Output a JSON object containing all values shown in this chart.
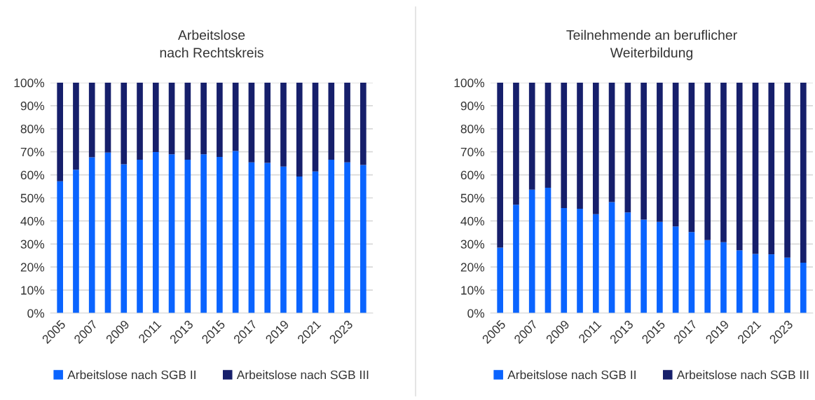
{
  "chart_data": [
    {
      "type": "bar",
      "title": "Arbeitslose\nnach Rechtskreis",
      "stacked": true,
      "categories": [
        "2005",
        null,
        "2007",
        null,
        "2009",
        null,
        "2011",
        null,
        "2013",
        null,
        "2015",
        null,
        "2017",
        null,
        "2019",
        null,
        "2021",
        null,
        "2023",
        null
      ],
      "series": [
        {
          "name": "Arbeitslose nach SGB II",
          "color": "#0a64ff",
          "values": [
            57.2,
            62.2,
            67.6,
            69.7,
            64.6,
            66.6,
            69.9,
            68.9,
            66.6,
            68.9,
            67.8,
            70.4,
            65.4,
            65.2,
            63.6,
            59.3,
            61.5,
            66.6,
            65.4,
            64.3
          ]
        },
        {
          "name": "Arbeitslose nach SGB III",
          "color": "#161f6b",
          "values": [
            42.8,
            37.8,
            32.4,
            30.3,
            35.4,
            33.4,
            30.1,
            31.1,
            33.4,
            31.1,
            32.2,
            29.6,
            34.6,
            34.8,
            36.4,
            40.7,
            38.5,
            33.4,
            34.6,
            35.7
          ]
        }
      ],
      "ylim": [
        0,
        100
      ],
      "yticks": [
        {
          "value": 0,
          "label": "0%"
        },
        {
          "value": 10,
          "label": "10%"
        },
        {
          "value": 20,
          "label": "20%"
        },
        {
          "value": 30,
          "label": "30%"
        },
        {
          "value": 40,
          "label": "40%"
        },
        {
          "value": 50,
          "label": "50%"
        },
        {
          "value": 60,
          "label": "60%"
        },
        {
          "value": 70,
          "label": "70%"
        },
        {
          "value": 80,
          "label": "80%"
        },
        {
          "value": 90,
          "label": "90%"
        },
        {
          "value": 100,
          "label": "100%"
        }
      ],
      "grid": "y",
      "legend": "bottom"
    },
    {
      "type": "bar",
      "title": "Teilnehmende an beruflicher\nWeiterbildung",
      "stacked": true,
      "categories": [
        "2005",
        null,
        "2007",
        null,
        "2009",
        null,
        "2011",
        null,
        "2013",
        null,
        "2015",
        null,
        "2017",
        null,
        "2019",
        null,
        "2021",
        null,
        "2023",
        null
      ],
      "series": [
        {
          "name": "Arbeitslose nach SGB II",
          "color": "#0a64ff",
          "values": [
            28.4,
            47.0,
            53.6,
            54.4,
            45.6,
            45.3,
            42.9,
            48.2,
            43.7,
            40.6,
            39.6,
            37.6,
            35.2,
            31.7,
            30.8,
            27.3,
            25.7,
            25.5,
            24.1,
            21.9
          ]
        },
        {
          "name": "Arbeitslose nach SGB III",
          "color": "#161f6b",
          "values": [
            71.6,
            53.0,
            46.4,
            45.6,
            54.4,
            54.7,
            57.1,
            51.8,
            56.3,
            59.4,
            60.4,
            62.4,
            64.8,
            68.3,
            69.2,
            72.7,
            74.3,
            74.5,
            75.9,
            78.1
          ]
        }
      ],
      "ylim": [
        0,
        100
      ],
      "yticks": [
        {
          "value": 0,
          "label": "0%"
        },
        {
          "value": 10,
          "label": "10%"
        },
        {
          "value": 20,
          "label": "20%"
        },
        {
          "value": 30,
          "label": "30%"
        },
        {
          "value": 40,
          "label": "40%"
        },
        {
          "value": 50,
          "label": "50%"
        },
        {
          "value": 60,
          "label": "60%"
        },
        {
          "value": 70,
          "label": "70%"
        },
        {
          "value": 80,
          "label": "80%"
        },
        {
          "value": 90,
          "label": "90%"
        },
        {
          "value": 100,
          "label": "100%"
        }
      ],
      "grid": "y",
      "legend": "bottom"
    }
  ]
}
